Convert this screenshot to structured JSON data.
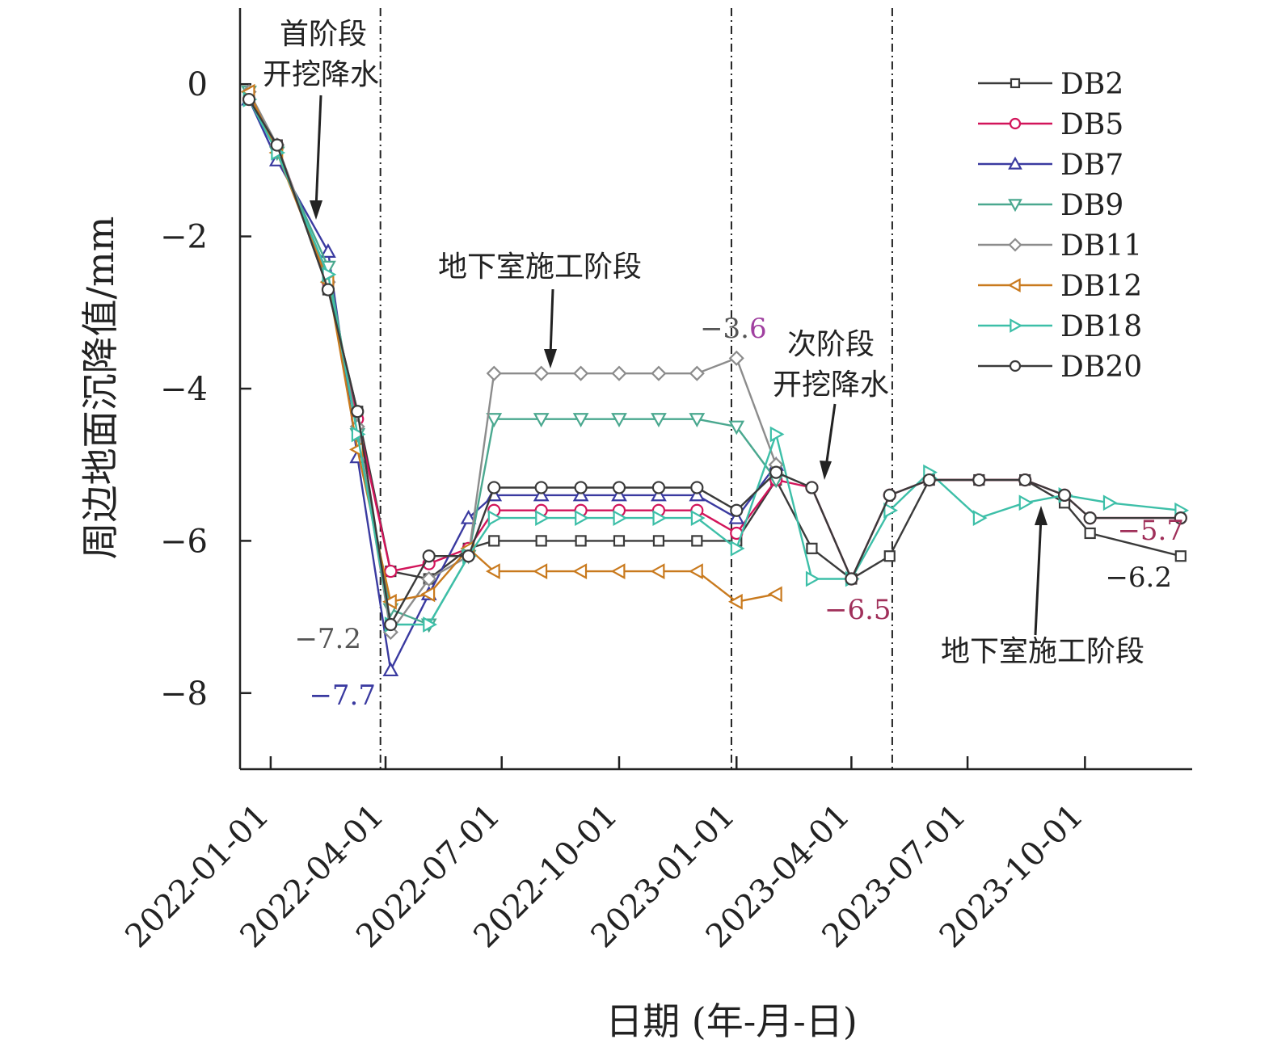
{
  "chart_data": {
    "type": "line",
    "title": "",
    "xlabel": "日期 (年-月-日)",
    "ylabel": "周边地面沉降值/mm",
    "ylim": [
      -9,
      1
    ],
    "y_ticks": [
      0,
      -2,
      -4,
      -6,
      -8
    ],
    "y_tick_labels": [
      "0",
      "−2",
      "−4",
      "−6",
      "−8"
    ],
    "x_range": [
      "2021-12-08",
      "2023-12-24"
    ],
    "x_ticks": [
      "2022-01-01",
      "2022-04-01",
      "2022-07-01",
      "2022-10-01",
      "2023-01-01",
      "2023-04-01",
      "2023-07-01",
      "2023-10-01"
    ],
    "x_tick_labels": [
      "2022-01-01",
      "2022-04-01",
      "2022-07-01",
      "2022-10-01",
      "2023-01-01",
      "2023-04-01",
      "2023-07-01",
      "2023-10-01"
    ],
    "grid": false,
    "legend_position": "top-right",
    "phase_boundaries": [
      "2022-03-28",
      "2022-12-28",
      "2023-05-03"
    ],
    "series": [
      {
        "name": "DB2",
        "color": "#3a3a3a",
        "marker": "square",
        "points": [
          [
            "2021-12-15",
            -0.2
          ],
          [
            "2022-01-06",
            -0.8
          ],
          [
            "2022-02-15",
            -2.7
          ],
          [
            "2022-03-10",
            -4.3
          ],
          [
            "2022-04-05",
            -6.4
          ],
          [
            "2022-05-05",
            -6.5
          ],
          [
            "2022-06-05",
            -6.1
          ],
          [
            "2022-06-25",
            -6.0
          ],
          [
            "2022-08-01",
            -6.0
          ],
          [
            "2022-09-01",
            -6.0
          ],
          [
            "2022-10-01",
            -6.0
          ],
          [
            "2022-11-01",
            -6.0
          ],
          [
            "2022-12-01",
            -6.0
          ],
          [
            "2023-01-01",
            -6.0
          ],
          [
            "2023-02-01",
            -5.2
          ],
          [
            "2023-03-01",
            -6.1
          ],
          [
            "2023-04-01",
            -6.5
          ],
          [
            "2023-05-01",
            -6.2
          ],
          [
            "2023-06-01",
            -5.2
          ],
          [
            "2023-07-10",
            -5.2
          ],
          [
            "2023-08-15",
            -5.2
          ],
          [
            "2023-09-15",
            -5.5
          ],
          [
            "2023-10-05",
            -5.9
          ],
          [
            "2023-12-15",
            -6.2
          ]
        ]
      },
      {
        "name": "DB5",
        "color": "#d2145a",
        "marker": "circle",
        "points": [
          [
            "2021-12-15",
            -0.2
          ],
          [
            "2022-01-06",
            -0.8
          ],
          [
            "2022-02-15",
            -2.6
          ],
          [
            "2022-03-10",
            -4.4
          ],
          [
            "2022-04-05",
            -6.4
          ],
          [
            "2022-05-05",
            -6.3
          ],
          [
            "2022-06-05",
            -6.1
          ],
          [
            "2022-06-25",
            -5.6
          ],
          [
            "2022-08-01",
            -5.6
          ],
          [
            "2022-09-01",
            -5.6
          ],
          [
            "2022-10-01",
            -5.6
          ],
          [
            "2022-11-01",
            -5.6
          ],
          [
            "2022-12-01",
            -5.6
          ],
          [
            "2023-01-01",
            -5.9
          ],
          [
            "2023-02-01",
            -5.2
          ],
          [
            "2023-03-01",
            -5.3
          ],
          [
            "2023-04-01",
            -6.5
          ],
          [
            "2023-05-01",
            -5.4
          ],
          [
            "2023-06-01",
            -5.2
          ],
          [
            "2023-07-10",
            -5.2
          ],
          [
            "2023-08-15",
            -5.2
          ],
          [
            "2023-09-15",
            -5.4
          ],
          [
            "2023-10-05",
            -5.7
          ],
          [
            "2023-12-15",
            -5.7
          ]
        ]
      },
      {
        "name": "DB7",
        "color": "#3a3aa0",
        "marker": "triangle-up",
        "points": [
          [
            "2021-12-15",
            -0.2
          ],
          [
            "2022-01-06",
            -1.0
          ],
          [
            "2022-02-15",
            -2.2
          ],
          [
            "2022-03-10",
            -4.9
          ],
          [
            "2022-04-05",
            -7.7
          ],
          [
            "2022-05-05",
            -6.7
          ],
          [
            "2022-06-05",
            -5.7
          ],
          [
            "2022-06-25",
            -5.4
          ],
          [
            "2022-08-01",
            -5.4
          ],
          [
            "2022-09-01",
            -5.4
          ],
          [
            "2022-10-01",
            -5.4
          ],
          [
            "2022-11-01",
            -5.4
          ],
          [
            "2022-12-01",
            -5.4
          ],
          [
            "2023-01-01",
            -5.7
          ],
          [
            "2023-02-01",
            -5.0
          ]
        ]
      },
      {
        "name": "DB9",
        "color": "#4aa88f",
        "marker": "triangle-down",
        "points": [
          [
            "2021-12-15",
            -0.1
          ],
          [
            "2022-01-06",
            -0.9
          ],
          [
            "2022-02-15",
            -2.4
          ],
          [
            "2022-03-10",
            -4.6
          ],
          [
            "2022-04-05",
            -6.9
          ],
          [
            "2022-05-05",
            -7.1
          ],
          [
            "2022-06-05",
            -6.2
          ],
          [
            "2022-06-25",
            -4.4
          ],
          [
            "2022-08-01",
            -4.4
          ],
          [
            "2022-09-01",
            -4.4
          ],
          [
            "2022-10-01",
            -4.4
          ],
          [
            "2022-11-01",
            -4.4
          ],
          [
            "2022-12-01",
            -4.4
          ],
          [
            "2023-01-01",
            -4.5
          ],
          [
            "2023-02-01",
            -5.2
          ]
        ]
      },
      {
        "name": "DB11",
        "color": "#8c8c8c",
        "marker": "diamond",
        "points": [
          [
            "2021-12-15",
            -0.1
          ],
          [
            "2022-01-06",
            -0.8
          ],
          [
            "2022-02-15",
            -2.6
          ],
          [
            "2022-03-10",
            -4.5
          ],
          [
            "2022-04-05",
            -7.2
          ],
          [
            "2022-05-05",
            -6.5
          ],
          [
            "2022-06-05",
            -6.2
          ],
          [
            "2022-06-25",
            -3.8
          ],
          [
            "2022-08-01",
            -3.8
          ],
          [
            "2022-09-01",
            -3.8
          ],
          [
            "2022-10-01",
            -3.8
          ],
          [
            "2022-11-01",
            -3.8
          ],
          [
            "2022-12-01",
            -3.8
          ],
          [
            "2023-01-01",
            -3.6
          ],
          [
            "2023-02-01",
            -5.0
          ]
        ]
      },
      {
        "name": "DB12",
        "color": "#c97a1e",
        "marker": "triangle-left",
        "points": [
          [
            "2021-12-15",
            -0.1
          ],
          [
            "2022-01-06",
            -0.9
          ],
          [
            "2022-02-15",
            -2.6
          ],
          [
            "2022-03-10",
            -4.8
          ],
          [
            "2022-04-05",
            -6.8
          ],
          [
            "2022-05-05",
            -6.7
          ],
          [
            "2022-06-05",
            -6.1
          ],
          [
            "2022-06-25",
            -6.4
          ],
          [
            "2022-08-01",
            -6.4
          ],
          [
            "2022-09-01",
            -6.4
          ],
          [
            "2022-10-01",
            -6.4
          ],
          [
            "2022-11-01",
            -6.4
          ],
          [
            "2022-12-01",
            -6.4
          ],
          [
            "2023-01-01",
            -6.8
          ],
          [
            "2023-02-01",
            -6.7
          ]
        ]
      },
      {
        "name": "DB18",
        "color": "#3dbfa8",
        "marker": "triangle-right",
        "points": [
          [
            "2021-12-15",
            -0.2
          ],
          [
            "2022-01-06",
            -0.9
          ],
          [
            "2022-02-15",
            -2.5
          ],
          [
            "2022-03-10",
            -4.6
          ],
          [
            "2022-04-05",
            -7.1
          ],
          [
            "2022-05-05",
            -7.1
          ],
          [
            "2022-06-05",
            -6.2
          ],
          [
            "2022-06-25",
            -5.7
          ],
          [
            "2022-08-01",
            -5.7
          ],
          [
            "2022-09-01",
            -5.7
          ],
          [
            "2022-10-01",
            -5.7
          ],
          [
            "2022-11-01",
            -5.7
          ],
          [
            "2022-12-01",
            -5.7
          ],
          [
            "2023-01-01",
            -6.1
          ],
          [
            "2023-02-01",
            -4.6
          ],
          [
            "2023-03-01",
            -6.5
          ],
          [
            "2023-04-01",
            -6.5
          ],
          [
            "2023-05-01",
            -5.6
          ],
          [
            "2023-06-01",
            -5.1
          ],
          [
            "2023-07-10",
            -5.7
          ],
          [
            "2023-08-15",
            -5.5
          ],
          [
            "2023-09-15",
            -5.4
          ],
          [
            "2023-10-20",
            -5.5
          ],
          [
            "2023-12-15",
            -5.6
          ]
        ]
      },
      {
        "name": "DB20",
        "color": "#3a3a3a",
        "marker": "circle",
        "points": [
          [
            "2021-12-15",
            -0.2
          ],
          [
            "2022-01-06",
            -0.8
          ],
          [
            "2022-02-15",
            -2.7
          ],
          [
            "2022-03-10",
            -4.3
          ],
          [
            "2022-04-05",
            -7.1
          ],
          [
            "2022-05-05",
            -6.2
          ],
          [
            "2022-06-05",
            -6.2
          ],
          [
            "2022-06-25",
            -5.3
          ],
          [
            "2022-08-01",
            -5.3
          ],
          [
            "2022-09-01",
            -5.3
          ],
          [
            "2022-10-01",
            -5.3
          ],
          [
            "2022-11-01",
            -5.3
          ],
          [
            "2022-12-01",
            -5.3
          ],
          [
            "2023-01-01",
            -5.6
          ],
          [
            "2023-02-01",
            -5.1
          ],
          [
            "2023-03-01",
            -5.3
          ],
          [
            "2023-04-01",
            -6.5
          ],
          [
            "2023-05-01",
            -5.4
          ],
          [
            "2023-06-01",
            -5.2
          ],
          [
            "2023-07-10",
            -5.2
          ],
          [
            "2023-08-15",
            -5.2
          ],
          [
            "2023-09-15",
            -5.4
          ],
          [
            "2023-10-05",
            -5.7
          ],
          [
            "2023-12-15",
            -5.7
          ]
        ]
      }
    ],
    "value_labels": [
      {
        "text": "−7.2",
        "color": "#555555"
      },
      {
        "text": "−7.7",
        "color": "#3a3aa0"
      },
      {
        "text": "−3.",
        "color": "#555555"
      },
      {
        "text": "6",
        "color": "#a040a0"
      },
      {
        "text": "−6.5",
        "color": "#a0305a"
      },
      {
        "text": "−5.7",
        "color": "#a0305a"
      },
      {
        "text": "−6.2",
        "color": "#222222"
      }
    ],
    "annotations": [
      {
        "lines": [
          "首阶段",
          "开挖降水"
        ]
      },
      {
        "lines": [
          "地下室施工阶段"
        ]
      },
      {
        "lines": [
          "次阶段",
          "开挖降水"
        ]
      },
      {
        "lines": [
          "地下室施工阶段"
        ]
      }
    ]
  }
}
